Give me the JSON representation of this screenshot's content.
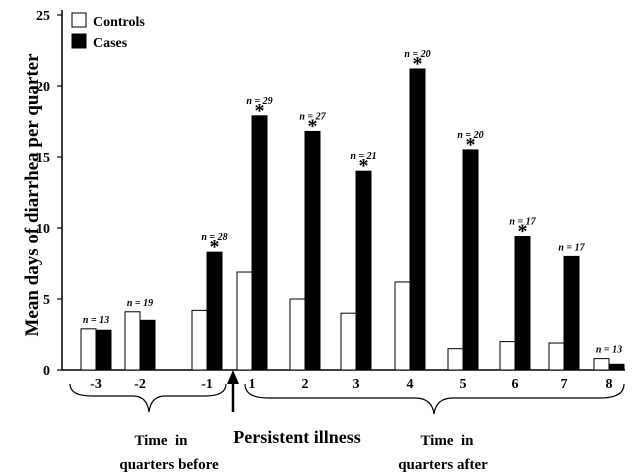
{
  "chart_data": {
    "type": "bar",
    "ylabel": "Mean days of diarrhea per quarter",
    "xlabel": "",
    "ylim": [
      0,
      25
    ],
    "yticks": [
      "0",
      "5",
      "10",
      "15",
      "20",
      "25"
    ],
    "categories": [
      "-3",
      "-2",
      "-1",
      "1",
      "2",
      "3",
      "4",
      "5",
      "6",
      "7",
      "8"
    ],
    "series": [
      {
        "name": "Controls",
        "color": "#ffffff",
        "values": [
          2.9,
          4.1,
          4.2,
          6.9,
          5.0,
          4.0,
          6.2,
          1.5,
          2.0,
          1.9,
          0.8
        ]
      },
      {
        "name": "Cases",
        "color": "#000000",
        "values": [
          2.8,
          3.5,
          8.3,
          17.9,
          16.8,
          14.0,
          21.2,
          15.5,
          9.4,
          8.0,
          0.4
        ]
      }
    ],
    "sample_sizes": [
      "n = 13",
      "n = 19",
      "n = 28",
      "n = 29",
      "n = 27",
      "n = 21",
      "n = 20",
      "n = 20",
      "n = 17",
      "n = 17",
      "n = 13"
    ],
    "significant": [
      false,
      false,
      true,
      true,
      true,
      true,
      true,
      true,
      true,
      false,
      false
    ],
    "significance_marker": "*",
    "legend": {
      "position": "top-left",
      "entries": [
        "Controls",
        "Cases"
      ]
    },
    "annotations": {
      "before_line1": "Time  in",
      "before_line2": "quarters before",
      "event": "Persistent illness",
      "after_line1": "Time  in",
      "after_line2": "quarters after"
    }
  }
}
